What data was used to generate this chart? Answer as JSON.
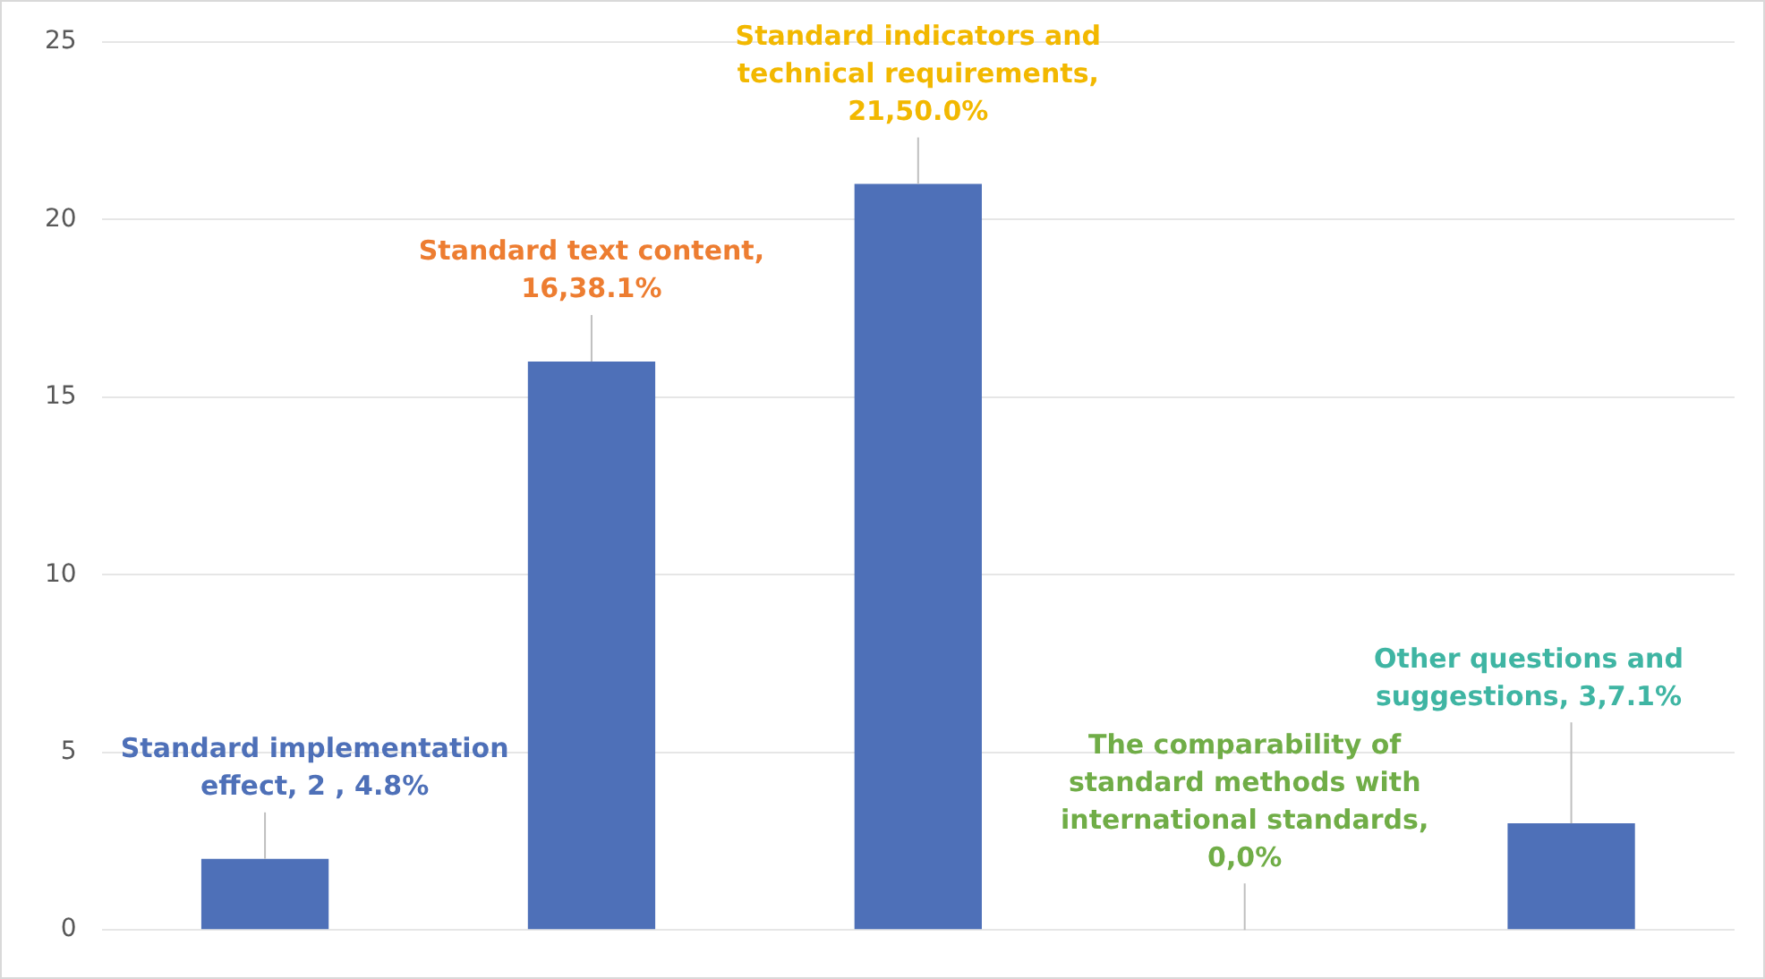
{
  "chart_data": {
    "type": "bar",
    "categories": [
      null,
      null,
      null,
      null,
      null
    ],
    "values": [
      2,
      16,
      21,
      0,
      3
    ],
    "color": "#4e70b8",
    "value_labels": [
      "Standard implementation effect, 2 ,  4.8%",
      "Standard text content, 16,38.1%",
      "Standard indicators and technical requirements, 21,50.0%",
      "The comparability of standard methods with international standards, 0,0%",
      "Other questions and suggestions, 3,7.1%"
    ],
    "ylim": [
      0,
      25
    ],
    "yticks": [
      0,
      5,
      10,
      15,
      20,
      25
    ],
    "grid": "y",
    "legend": false
  }
}
